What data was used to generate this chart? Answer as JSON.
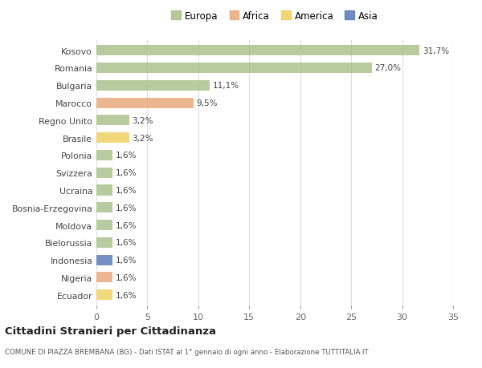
{
  "countries": [
    "Kosovo",
    "Romania",
    "Bulgaria",
    "Marocco",
    "Regno Unito",
    "Brasile",
    "Polonia",
    "Svizzera",
    "Ucraina",
    "Bosnia-Erzegovina",
    "Moldova",
    "Bielorussia",
    "Indonesia",
    "Nigeria",
    "Ecuador"
  ],
  "values": [
    31.7,
    27.0,
    11.1,
    9.5,
    3.2,
    3.2,
    1.6,
    1.6,
    1.6,
    1.6,
    1.6,
    1.6,
    1.6,
    1.6,
    1.6
  ],
  "labels": [
    "31,7%",
    "27,0%",
    "11,1%",
    "9,5%",
    "3,2%",
    "3,2%",
    "1,6%",
    "1,6%",
    "1,6%",
    "1,6%",
    "1,6%",
    "1,6%",
    "1,6%",
    "1,6%",
    "1,6%"
  ],
  "colors": [
    "#a8c08a",
    "#a8c08a",
    "#a8c08a",
    "#e8a878",
    "#a8c08a",
    "#f0d060",
    "#a8c08a",
    "#a8c08a",
    "#a8c08a",
    "#a8c08a",
    "#a8c08a",
    "#a8c08a",
    "#5878b8",
    "#e8a878",
    "#f0d060"
  ],
  "legend_labels": [
    "Europa",
    "Africa",
    "America",
    "Asia"
  ],
  "legend_colors": [
    "#a8c08a",
    "#e8a878",
    "#f0d060",
    "#5878b8"
  ],
  "title": "Cittadini Stranieri per Cittadinanza",
  "subtitle": "COMUNE DI PIAZZA BREMBANA (BG) - Dati ISTAT al 1° gennaio di ogni anno - Elaborazione TUTTITALIA.IT",
  "xlim": [
    0,
    35
  ],
  "xticks": [
    0,
    5,
    10,
    15,
    20,
    25,
    30,
    35
  ],
  "bg_color": "#ffffff",
  "bar_height": 0.6
}
